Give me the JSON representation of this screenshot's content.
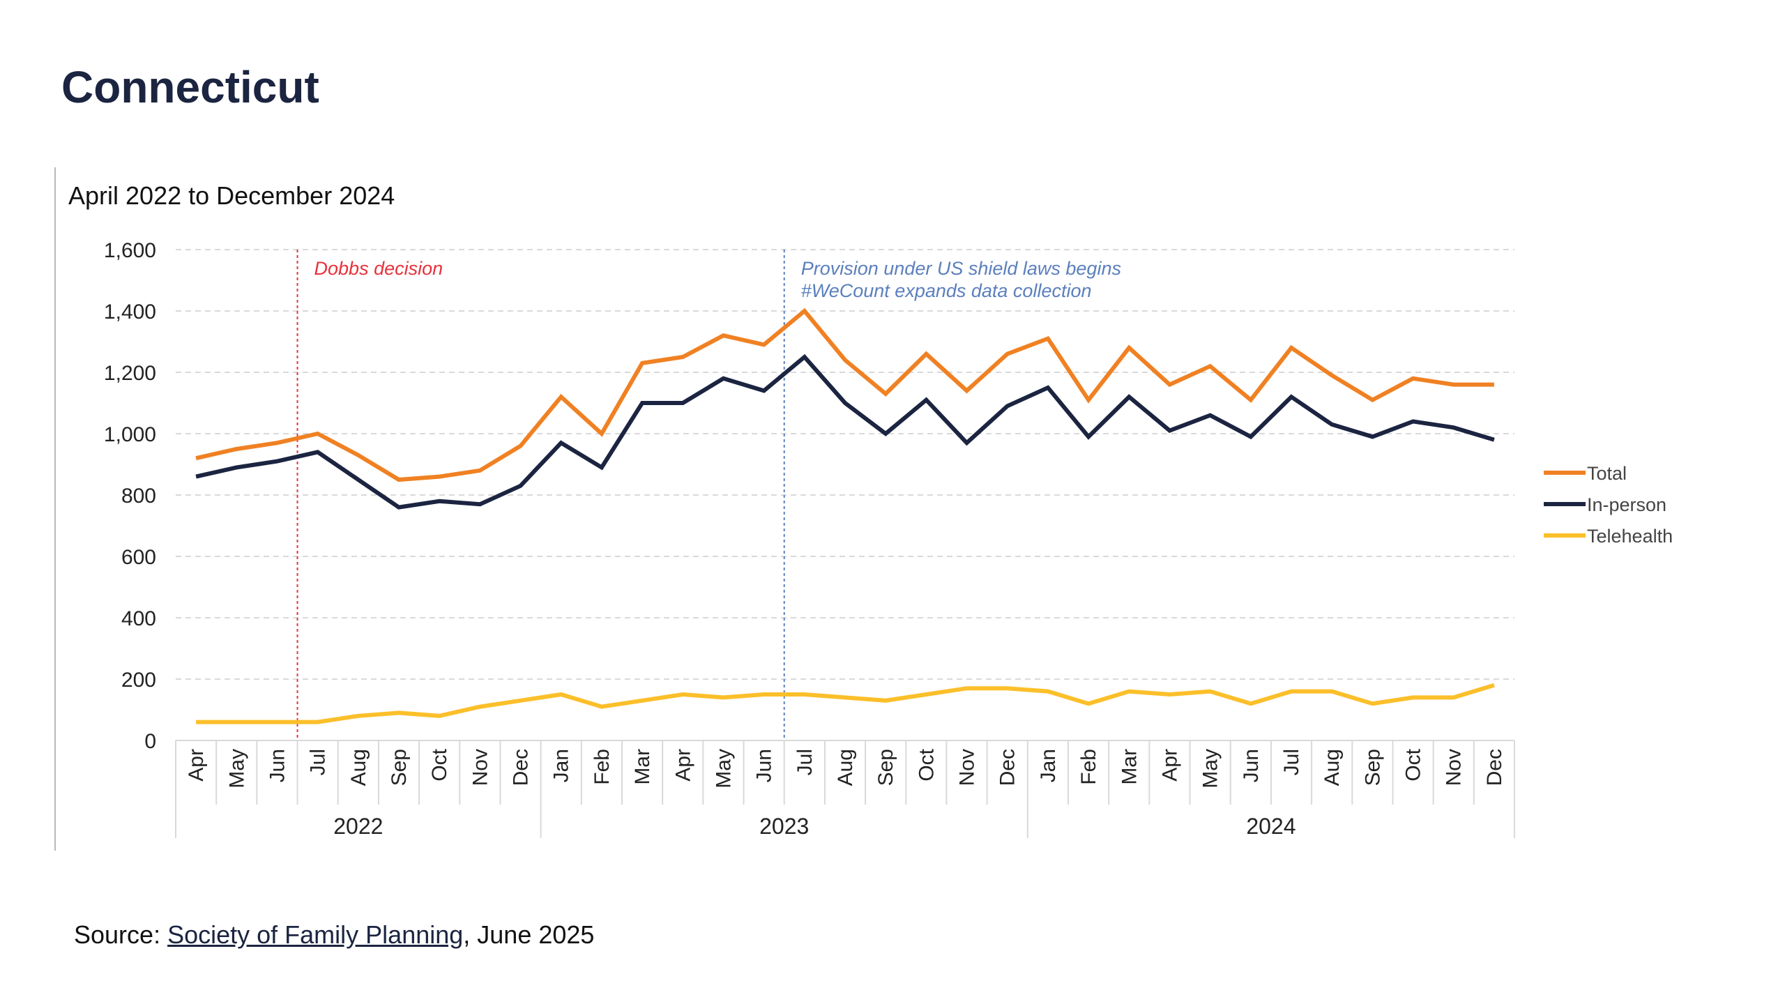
{
  "page": {
    "title": "Connecticut"
  },
  "source": {
    "prefix": "Source: ",
    "link_text": "Society of Family Planning",
    "suffix": ", June 2025"
  },
  "chart_data": {
    "type": "line",
    "subtitle": "April 2022 to December 2024",
    "categories": [
      "Apr",
      "May",
      "Jun",
      "Jul",
      "Aug",
      "Sep",
      "Oct",
      "Nov",
      "Dec",
      "Jan",
      "Feb",
      "Mar",
      "Apr",
      "May",
      "Jun",
      "Jul",
      "Aug",
      "Sep",
      "Oct",
      "Nov",
      "Dec",
      "Jan",
      "Feb",
      "Mar",
      "Apr",
      "May",
      "Jun",
      "Jul",
      "Aug",
      "Sep",
      "Oct",
      "Nov",
      "Dec"
    ],
    "year_groups": [
      {
        "label": "2022",
        "count": 9
      },
      {
        "label": "2023",
        "count": 12
      },
      {
        "label": "2024",
        "count": 12
      }
    ],
    "ylim": [
      0,
      1600
    ],
    "yticks": [
      0,
      200,
      400,
      600,
      800,
      1000,
      1200,
      1400,
      1600
    ],
    "ytick_labels": [
      "0",
      "200",
      "400",
      "600",
      "800",
      "1,000",
      "1,200",
      "1,400",
      "1,600"
    ],
    "grid": true,
    "legend_position": "right",
    "series": [
      {
        "name": "Total",
        "color": "#f08123",
        "values": [
          920,
          950,
          970,
          1000,
          930,
          850,
          860,
          880,
          960,
          1120,
          1000,
          1230,
          1250,
          1320,
          1290,
          1400,
          1240,
          1130,
          1260,
          1140,
          1260,
          1310,
          1110,
          1280,
          1160,
          1220,
          1110,
          1280,
          1190,
          1110,
          1180,
          1160,
          1160
        ]
      },
      {
        "name": "In-person",
        "color": "#1b2440",
        "values": [
          860,
          890,
          910,
          940,
          850,
          760,
          780,
          770,
          830,
          970,
          890,
          1100,
          1100,
          1180,
          1140,
          1250,
          1100,
          1000,
          1110,
          970,
          1090,
          1150,
          990,
          1120,
          1010,
          1060,
          990,
          1120,
          1030,
          990,
          1040,
          1020,
          980
        ]
      },
      {
        "name": "Telehealth",
        "color": "#fbbf2a",
        "values": [
          60,
          60,
          60,
          60,
          80,
          90,
          80,
          110,
          130,
          150,
          110,
          130,
          150,
          140,
          150,
          150,
          140,
          130,
          150,
          170,
          170,
          160,
          120,
          160,
          150,
          160,
          120,
          160,
          160,
          120,
          140,
          140,
          180
        ]
      }
    ],
    "annotations": [
      {
        "between": [
          2,
          3
        ],
        "color": "#e8313a",
        "lines": [
          "Dobbs decision"
        ]
      },
      {
        "between": [
          14,
          15
        ],
        "color": "#5b7fbd",
        "lines": [
          "Provision under US shield laws begins",
          "#WeCount expands data collection"
        ]
      }
    ]
  }
}
